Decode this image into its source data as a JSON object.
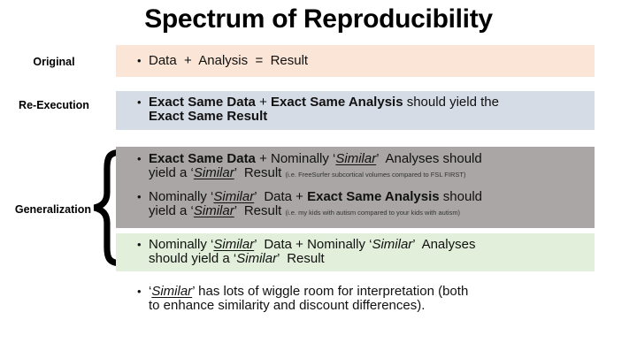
{
  "title": "Spectrum of Reproducibility",
  "bullet_char": "•",
  "colors": {
    "band_original": "#fbe5d6",
    "band_re_execution": "#d6dce5",
    "band_generalization_gray": "#a9a6a5",
    "band_generalization_green": "#e2efda",
    "text": "#111111",
    "title": "#000000"
  },
  "bands": [
    {
      "label": "Original",
      "bg": "#fbe5d6",
      "bullets": [
        {
          "segments": [
            {
              "t": "Data  +  Analysis  =  Result"
            }
          ]
        }
      ]
    },
    {
      "label": "Re-Execution",
      "bg": "#d6dce5",
      "bullets": [
        {
          "segments": [
            {
              "t": "Exact Same Data",
              "b": true
            },
            {
              "t": " + "
            },
            {
              "t": "Exact Same Analysis",
              "b": true
            },
            {
              "t": " should yield the\n"
            },
            {
              "t": "Exact Same Result",
              "b": true
            }
          ]
        }
      ]
    },
    {
      "label": "Generalization",
      "bg": "#a9a6a5",
      "bullets": [
        {
          "segments": [
            {
              "t": "Exact Same Data",
              "b": true
            },
            {
              "t": " + Nominally ‘"
            },
            {
              "t": "Similar",
              "i": true,
              "u": true
            },
            {
              "t": "’  Analyses should\nyield a ‘"
            },
            {
              "t": "Similar",
              "i": true,
              "u": true
            },
            {
              "t": "’  Result "
            },
            {
              "t": "(i.e. FreeSurfer subcortical volumes compared to FSL FIRST)",
              "small": true
            }
          ]
        },
        {
          "segments": [
            {
              "t": "Nominally ‘"
            },
            {
              "t": "Similar",
              "i": true,
              "u": true
            },
            {
              "t": "’  Data + "
            },
            {
              "t": "Exact Same Analysis",
              "b": true
            },
            {
              "t": " should\nyield a ‘"
            },
            {
              "t": "Similar",
              "i": true,
              "u": true
            },
            {
              "t": "’  Result "
            },
            {
              "t": "(i.e. my kids with autism compared to your kids with autism)",
              "small": true
            }
          ]
        }
      ]
    },
    {
      "label": "",
      "bg": "#e2efda",
      "bullets": [
        {
          "segments": [
            {
              "t": "Nominally ‘"
            },
            {
              "t": "Similar",
              "i": true,
              "u": true
            },
            {
              "t": "’  Data + Nominally ‘"
            },
            {
              "t": "Similar",
              "i": true
            },
            {
              "t": "’  Analyses\nshould yield a ‘"
            },
            {
              "t": "Similar",
              "i": true
            },
            {
              "t": "’  Result"
            }
          ]
        }
      ]
    }
  ],
  "footnote": {
    "segments": [
      {
        "t": "‘"
      },
      {
        "t": "Similar",
        "i": true,
        "u": true
      },
      {
        "t": "’ has lots of wiggle room for interpretation (both\nto enhance similarity and discount differences)."
      }
    ]
  }
}
